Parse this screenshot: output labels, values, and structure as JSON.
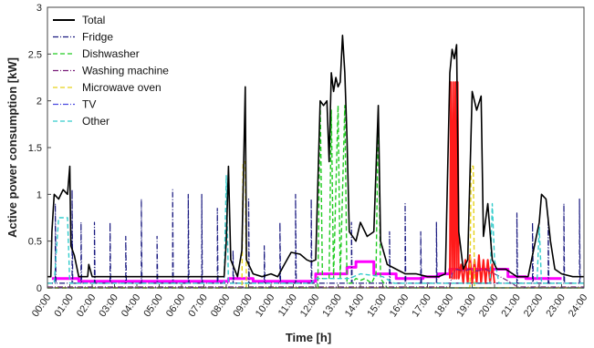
{
  "chart_data": {
    "type": "line",
    "title": "",
    "xlabel": "Time [h]",
    "ylabel": "Active power consumption [kW]",
    "xlim": [
      0,
      24
    ],
    "ylim": [
      0,
      3
    ],
    "x_ticks": [
      "00:00",
      "01:00",
      "02:00",
      "03:00",
      "04:00",
      "05:00",
      "06:00",
      "07:00",
      "08:00",
      "09:00",
      "10:00",
      "11:00",
      "12:00",
      "13:00",
      "14:00",
      "15:00",
      "16:00",
      "17:00",
      "18:00",
      "19:00",
      "20:00",
      "21:00",
      "22:00",
      "23:00",
      "24:00"
    ],
    "y_ticks": [
      "0",
      "0.5",
      "1",
      "1.5",
      "2",
      "2.5",
      "3"
    ],
    "legend_position": "top-left",
    "grid": false,
    "series": [
      {
        "name": "Total",
        "color": "#000000",
        "dash": "",
        "width": 1.6,
        "points": [
          [
            0,
            0.12
          ],
          [
            0.15,
            0.12
          ],
          [
            0.2,
            0.6
          ],
          [
            0.3,
            1.0
          ],
          [
            0.5,
            0.95
          ],
          [
            0.7,
            1.05
          ],
          [
            0.9,
            1.0
          ],
          [
            1.0,
            1.3
          ],
          [
            1.05,
            0.45
          ],
          [
            1.2,
            0.35
          ],
          [
            1.4,
            0.12
          ],
          [
            1.8,
            0.12
          ],
          [
            1.85,
            0.25
          ],
          [
            2.0,
            0.12
          ],
          [
            3.0,
            0.12
          ],
          [
            4.0,
            0.12
          ],
          [
            5.0,
            0.12
          ],
          [
            6.0,
            0.12
          ],
          [
            7.0,
            0.12
          ],
          [
            7.9,
            0.12
          ],
          [
            8.0,
            0.5
          ],
          [
            8.1,
            1.3
          ],
          [
            8.2,
            0.3
          ],
          [
            8.5,
            0.12
          ],
          [
            8.7,
            0.4
          ],
          [
            8.85,
            2.15
          ],
          [
            8.9,
            0.3
          ],
          [
            9.2,
            0.15
          ],
          [
            9.6,
            0.12
          ],
          [
            10.0,
            0.15
          ],
          [
            10.3,
            0.12
          ],
          [
            10.6,
            0.25
          ],
          [
            10.9,
            0.38
          ],
          [
            11.3,
            0.36
          ],
          [
            11.6,
            0.3
          ],
          [
            11.8,
            0.28
          ],
          [
            12.0,
            0.3
          ],
          [
            12.2,
            2.0
          ],
          [
            12.35,
            1.95
          ],
          [
            12.5,
            2.0
          ],
          [
            12.6,
            1.35
          ],
          [
            12.7,
            2.3
          ],
          [
            12.8,
            2.1
          ],
          [
            12.9,
            2.25
          ],
          [
            13.0,
            2.15
          ],
          [
            13.1,
            2.2
          ],
          [
            13.2,
            2.7
          ],
          [
            13.3,
            2.3
          ],
          [
            13.4,
            1.6
          ],
          [
            13.5,
            0.6
          ],
          [
            13.8,
            0.5
          ],
          [
            14.0,
            0.7
          ],
          [
            14.3,
            0.55
          ],
          [
            14.6,
            0.6
          ],
          [
            14.8,
            1.95
          ],
          [
            14.9,
            0.5
          ],
          [
            15.2,
            0.25
          ],
          [
            15.6,
            0.2
          ],
          [
            16.0,
            0.15
          ],
          [
            16.5,
            0.15
          ],
          [
            17.0,
            0.12
          ],
          [
            17.5,
            0.12
          ],
          [
            17.8,
            0.15
          ],
          [
            18.0,
            2.3
          ],
          [
            18.1,
            2.55
          ],
          [
            18.2,
            2.45
          ],
          [
            18.3,
            2.6
          ],
          [
            18.4,
            0.6
          ],
          [
            18.6,
            0.2
          ],
          [
            18.8,
            0.3
          ],
          [
            19.0,
            2.1
          ],
          [
            19.2,
            1.9
          ],
          [
            19.4,
            2.05
          ],
          [
            19.5,
            0.55
          ],
          [
            19.7,
            0.9
          ],
          [
            19.9,
            0.3
          ],
          [
            20.1,
            0.2
          ],
          [
            20.5,
            0.2
          ],
          [
            21.0,
            0.12
          ],
          [
            21.5,
            0.12
          ],
          [
            22.0,
            0.7
          ],
          [
            22.1,
            1.0
          ],
          [
            22.3,
            0.95
          ],
          [
            22.5,
            0.5
          ],
          [
            22.7,
            0.2
          ],
          [
            23.0,
            0.15
          ],
          [
            23.5,
            0.12
          ],
          [
            24.0,
            0.12
          ]
        ]
      },
      {
        "name": "Fridge",
        "color": "#1a1a80",
        "dash": "6,2,1,2",
        "width": 1.2,
        "points": [
          [
            0,
            0.05
          ],
          [
            0.35,
            0.05
          ],
          [
            0.35,
            0.9
          ],
          [
            0.38,
            0.05
          ],
          [
            1.1,
            0.05
          ],
          [
            1.1,
            1.05
          ],
          [
            1.13,
            0.05
          ],
          [
            1.5,
            0.05
          ],
          [
            1.5,
            0.7
          ],
          [
            1.53,
            0.05
          ],
          [
            2.1,
            0.05
          ],
          [
            2.1,
            0.7
          ],
          [
            2.13,
            0.05
          ],
          [
            2.8,
            0.05
          ],
          [
            2.8,
            0.7
          ],
          [
            2.83,
            0.05
          ],
          [
            3.5,
            0.05
          ],
          [
            3.5,
            0.55
          ],
          [
            3.53,
            0.05
          ],
          [
            4.2,
            0.05
          ],
          [
            4.2,
            0.95
          ],
          [
            4.23,
            0.05
          ],
          [
            4.9,
            0.05
          ],
          [
            4.9,
            0.55
          ],
          [
            4.93,
            0.05
          ],
          [
            5.6,
            0.05
          ],
          [
            5.6,
            1.05
          ],
          [
            5.63,
            0.05
          ],
          [
            6.3,
            0.05
          ],
          [
            6.3,
            1.0
          ],
          [
            6.33,
            0.05
          ],
          [
            6.9,
            0.05
          ],
          [
            6.9,
            1.0
          ],
          [
            6.93,
            0.05
          ],
          [
            7.6,
            0.05
          ],
          [
            7.6,
            0.85
          ],
          [
            7.63,
            0.05
          ],
          [
            8.3,
            0.05
          ],
          [
            8.3,
            0.4
          ],
          [
            8.33,
            0.05
          ],
          [
            9.0,
            0.05
          ],
          [
            9.0,
            0.95
          ],
          [
            9.03,
            0.05
          ],
          [
            9.7,
            0.05
          ],
          [
            9.7,
            0.45
          ],
          [
            9.73,
            0.05
          ],
          [
            10.4,
            0.05
          ],
          [
            10.4,
            0.7
          ],
          [
            10.43,
            0.05
          ],
          [
            11.1,
            0.05
          ],
          [
            11.1,
            1.0
          ],
          [
            11.13,
            0.05
          ],
          [
            11.8,
            0.05
          ],
          [
            11.8,
            0.95
          ],
          [
            11.83,
            0.05
          ],
          [
            13.6,
            0.05
          ],
          [
            13.6,
            0.7
          ],
          [
            13.63,
            0.05
          ],
          [
            15.3,
            0.05
          ],
          [
            15.3,
            0.6
          ],
          [
            15.33,
            0.05
          ],
          [
            16.0,
            0.05
          ],
          [
            16.0,
            0.9
          ],
          [
            16.03,
            0.05
          ],
          [
            16.7,
            0.05
          ],
          [
            16.7,
            0.6
          ],
          [
            16.73,
            0.05
          ],
          [
            17.4,
            0.05
          ],
          [
            17.4,
            0.7
          ],
          [
            17.43,
            0.05
          ],
          [
            21.0,
            0.05
          ],
          [
            21.0,
            0.8
          ],
          [
            21.03,
            0.05
          ],
          [
            21.7,
            0.05
          ],
          [
            21.7,
            0.7
          ],
          [
            21.73,
            0.05
          ],
          [
            22.4,
            0.05
          ],
          [
            22.4,
            0.75
          ],
          [
            22.43,
            0.05
          ],
          [
            23.1,
            0.05
          ],
          [
            23.1,
            0.9
          ],
          [
            23.13,
            0.05
          ],
          [
            23.8,
            0.05
          ],
          [
            23.8,
            0.95
          ],
          [
            23.83,
            0.05
          ],
          [
            24.0,
            0.05
          ]
        ]
      },
      {
        "name": "Dishwasher",
        "color": "#22cc22",
        "dash": "5,3",
        "width": 1.4,
        "points": [
          [
            0,
            0
          ],
          [
            12.1,
            0
          ],
          [
            12.1,
            0.05
          ],
          [
            12.2,
            2.0
          ],
          [
            12.3,
            0.1
          ],
          [
            12.6,
            0.1
          ],
          [
            12.7,
            1.9
          ],
          [
            12.8,
            0.1
          ],
          [
            13.0,
            1.95
          ],
          [
            13.1,
            0.1
          ],
          [
            13.3,
            1.95
          ],
          [
            13.4,
            0.05
          ],
          [
            13.6,
            0.05
          ],
          [
            13.8,
            0.1
          ],
          [
            14.0,
            0.08
          ],
          [
            14.2,
            0.1
          ],
          [
            14.5,
            0.05
          ],
          [
            14.7,
            0.15
          ],
          [
            14.8,
            1.9
          ],
          [
            14.9,
            0.1
          ],
          [
            15.2,
            0.0
          ],
          [
            24.0,
            0.0
          ]
        ]
      },
      {
        "name": "Washing machine",
        "color": "#7a1e7a",
        "dash": "6,2,1,2",
        "width": 1.2,
        "points": [
          [
            0,
            0.01
          ],
          [
            18.0,
            0.01
          ],
          [
            18.1,
            0.15
          ],
          [
            18.3,
            0.2
          ],
          [
            18.6,
            0.18
          ],
          [
            18.9,
            0.2
          ],
          [
            19.2,
            0.18
          ],
          [
            19.6,
            0.2
          ],
          [
            20.0,
            0.15
          ],
          [
            20.4,
            0.1
          ],
          [
            20.8,
            0.05
          ],
          [
            21.0,
            0.01
          ],
          [
            24.0,
            0.01
          ]
        ]
      },
      {
        "name": "Microwave oven",
        "color": "#e6d21a",
        "dash": "5,3",
        "width": 1.4,
        "points": [
          [
            0,
            0
          ],
          [
            8.7,
            0
          ],
          [
            8.75,
            1.35
          ],
          [
            8.85,
            1.35
          ],
          [
            8.9,
            0
          ],
          [
            18.9,
            0
          ],
          [
            18.95,
            1.3
          ],
          [
            19.05,
            1.3
          ],
          [
            19.1,
            0
          ],
          [
            24.0,
            0
          ]
        ]
      },
      {
        "name": "TV",
        "color": "#4a4ae0",
        "dash": "6,2,1,2",
        "width": 1.2,
        "points": [
          [
            0,
            0.0
          ],
          [
            24.0,
            0.0
          ]
        ]
      },
      {
        "name": "Other",
        "color": "#33cccc",
        "dash": "5,3",
        "width": 1.4,
        "points": [
          [
            0,
            0.05
          ],
          [
            0.3,
            0.05
          ],
          [
            0.5,
            0.75
          ],
          [
            0.9,
            0.75
          ],
          [
            1.0,
            0.05
          ],
          [
            7.9,
            0.05
          ],
          [
            8.0,
            1.2
          ],
          [
            8.1,
            0.05
          ],
          [
            11.8,
            0.05
          ],
          [
            12.0,
            0.1
          ],
          [
            13.5,
            0.1
          ],
          [
            14.0,
            0.15
          ],
          [
            15.0,
            0.12
          ],
          [
            15.5,
            0.05
          ],
          [
            19.8,
            0.05
          ],
          [
            19.9,
            0.9
          ],
          [
            20.0,
            0.3
          ],
          [
            20.2,
            0.05
          ],
          [
            21.9,
            0.05
          ],
          [
            22.0,
            0.65
          ],
          [
            22.1,
            0.05
          ],
          [
            24.0,
            0.05
          ]
        ]
      }
    ],
    "extra_series": [
      {
        "name": "",
        "color": "#ff00ff",
        "dash": "",
        "width": 3,
        "points": [
          [
            0.2,
            0.1
          ],
          [
            1.4,
            0.1
          ],
          [
            1.4,
            0.07
          ],
          [
            8.1,
            0.07
          ],
          [
            8.1,
            0.1
          ],
          [
            9.2,
            0.1
          ],
          [
            9.2,
            0.07
          ],
          [
            12.0,
            0.07
          ],
          [
            12.0,
            0.15
          ],
          [
            13.4,
            0.15
          ],
          [
            13.4,
            0.22
          ],
          [
            13.8,
            0.22
          ],
          [
            13.8,
            0.28
          ],
          [
            14.6,
            0.28
          ],
          [
            14.6,
            0.15
          ],
          [
            15.6,
            0.15
          ],
          [
            15.6,
            0.1
          ],
          [
            16.8,
            0.1
          ],
          [
            16.8,
            0.12
          ],
          [
            17.5,
            0.12
          ],
          [
            17.5,
            0.15
          ],
          [
            18.0,
            0.15
          ],
          [
            18.0,
            0.2
          ],
          [
            20.6,
            0.2
          ],
          [
            20.6,
            0.12
          ],
          [
            21.4,
            0.12
          ],
          [
            21.4,
            0.1
          ],
          [
            23.0,
            0.1
          ]
        ]
      },
      {
        "name": "",
        "color": "#ff1a1a",
        "dash": "",
        "width": 2,
        "points": [
          [
            18.0,
            0.1
          ],
          [
            18.05,
            2.2
          ],
          [
            18.1,
            0.1
          ],
          [
            18.15,
            2.2
          ],
          [
            18.2,
            0.1
          ],
          [
            18.25,
            2.2
          ],
          [
            18.3,
            0.1
          ],
          [
            18.35,
            2.2
          ],
          [
            18.4,
            0.1
          ],
          [
            18.5,
            0.25
          ],
          [
            18.6,
            0.05
          ],
          [
            18.7,
            0.3
          ],
          [
            18.8,
            0.05
          ],
          [
            18.9,
            0.35
          ],
          [
            19.0,
            0.05
          ],
          [
            19.1,
            0.3
          ],
          [
            19.2,
            0.05
          ],
          [
            19.3,
            0.35
          ],
          [
            19.4,
            0.05
          ],
          [
            19.5,
            0.3
          ],
          [
            19.6,
            0.05
          ],
          [
            19.7,
            0.3
          ],
          [
            19.8,
            0.05
          ],
          [
            19.9,
            0.25
          ],
          [
            20.0,
            0.05
          ]
        ]
      }
    ]
  }
}
